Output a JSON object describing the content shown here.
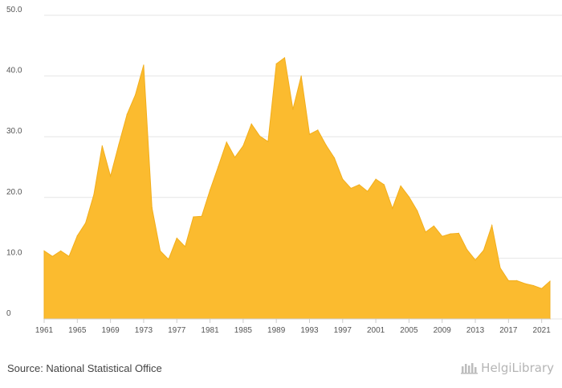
{
  "chart_data": {
    "type": "area",
    "title": "",
    "xlabel": "",
    "ylabel": "",
    "source": "Source: National Statistical Office",
    "brand": "HelgiLibrary",
    "color": "#FBBB2F",
    "line_color": "#F2AE1C",
    "grid": true,
    "ylim": [
      0,
      50
    ],
    "yticks": [
      0,
      10,
      20,
      30,
      40,
      50
    ],
    "ytick_labels": [
      "0",
      "10.0",
      "20.0",
      "30.0",
      "40.0",
      "50.0"
    ],
    "xlim": [
      1961,
      2022
    ],
    "xtick_labels": [
      "1961",
      "1965",
      "1969",
      "1973",
      "1977",
      "1981",
      "1985",
      "1989",
      "1993",
      "1997",
      "2001",
      "2005",
      "2009",
      "2013",
      "2017",
      "2021"
    ],
    "x": [
      1961,
      1962,
      1963,
      1964,
      1965,
      1966,
      1967,
      1968,
      1969,
      1970,
      1971,
      1972,
      1973,
      1974,
      1975,
      1976,
      1977,
      1978,
      1979,
      1980,
      1981,
      1982,
      1983,
      1984,
      1985,
      1986,
      1987,
      1988,
      1989,
      1990,
      1991,
      1992,
      1993,
      1994,
      1995,
      1996,
      1997,
      1998,
      1999,
      2000,
      2001,
      2002,
      2003,
      2004,
      2005,
      2006,
      2007,
      2008,
      2009,
      2010,
      2011,
      2012,
      2013,
      2014,
      2015,
      2016,
      2017,
      2018,
      2019,
      2020,
      2021,
      2022
    ],
    "values": [
      11.2,
      10.3,
      11.2,
      10.3,
      13.7,
      15.8,
      20.5,
      28.5,
      23.5,
      28.7,
      33.7,
      36.9,
      41.8,
      18.3,
      11.2,
      9.8,
      13.3,
      11.9,
      16.8,
      16.9,
      21.2,
      25.1,
      29.1,
      26.6,
      28.5,
      32.1,
      30.1,
      29.2,
      42.0,
      43.0,
      34.5,
      40.0,
      30.4,
      31.1,
      28.6,
      26.5,
      23.0,
      21.5,
      22.1,
      21.0,
      23.0,
      22.1,
      18.2,
      21.9,
      20.1,
      17.8,
      14.3,
      15.3,
      13.6,
      14.0,
      14.1,
      11.4,
      9.7,
      11.3,
      15.4,
      8.4,
      6.3,
      6.3,
      5.8,
      5.5,
      5.0,
      6.2
    ]
  }
}
